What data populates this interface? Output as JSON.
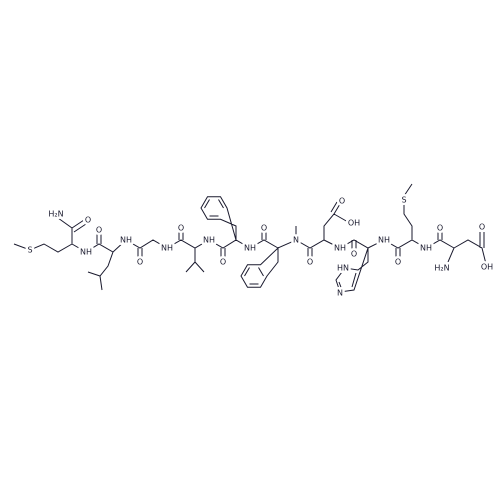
{
  "labels": [
    "S",
    "H₂N",
    "O",
    "NH",
    "O",
    "NH",
    "O",
    "NH",
    "O",
    "NH",
    "O",
    "NH",
    "O",
    "N",
    "O",
    "O",
    "OH",
    "NH",
    "O",
    "HN",
    "N",
    "NH",
    "O",
    "S",
    "NH",
    "O",
    "H₂N",
    "O",
    "OH"
  ]
}
